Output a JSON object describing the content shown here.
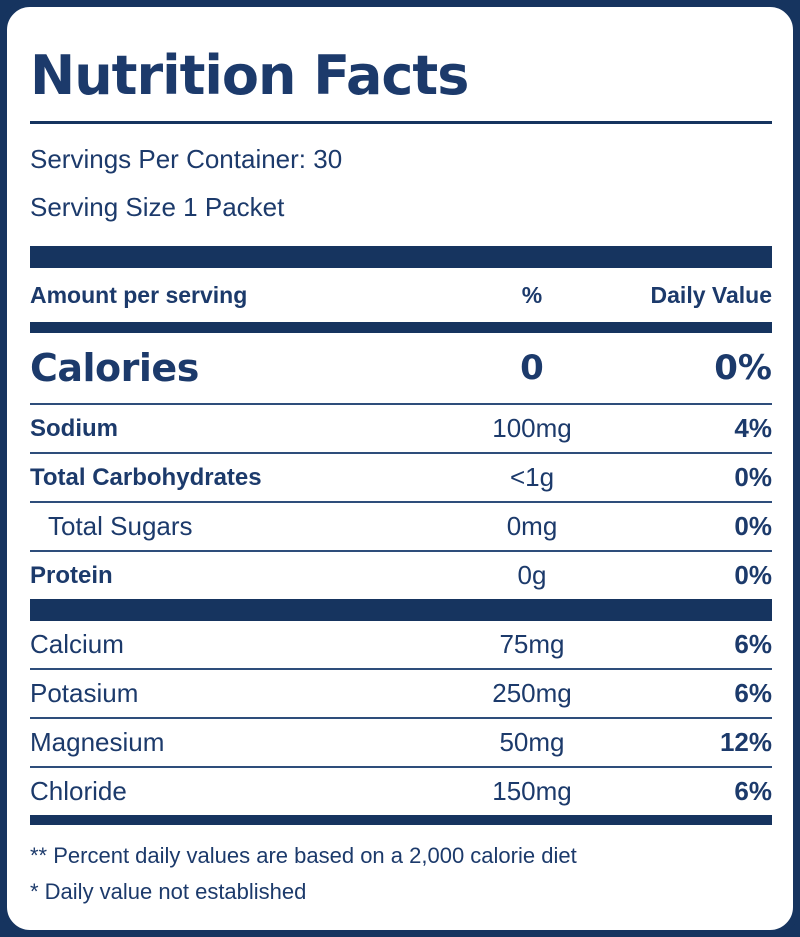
{
  "title": "Nutrition Facts",
  "servings_per_container": "Servings Per Container: 30",
  "serving_size": "Serving Size 1 Packet",
  "columns": {
    "amount_header": "Amount per serving",
    "percent_header": "%",
    "daily_value_header": "Daily Value"
  },
  "calories": {
    "name": "Calories",
    "amount": "0",
    "daily_value": "0%"
  },
  "nutrients": [
    {
      "name": "Sodium",
      "amount": "100mg",
      "daily_value": "4%"
    },
    {
      "name": "Total Carbohydrates",
      "amount": "<1g",
      "daily_value": "0%"
    },
    {
      "name": "Total Sugars",
      "amount": "0mg",
      "daily_value": "0%"
    },
    {
      "name": "Protein",
      "amount": "0g",
      "daily_value": "0%"
    }
  ],
  "minerals": [
    {
      "name": "Calcium",
      "amount": "75mg",
      "daily_value": "6%"
    },
    {
      "name": "Potasium",
      "amount": "250mg",
      "daily_value": "6%"
    },
    {
      "name": "Magnesium",
      "amount": "50mg",
      "daily_value": "12%"
    },
    {
      "name": "Chloride",
      "amount": "150mg",
      "daily_value": "6%"
    }
  ],
  "footnotes": [
    "** Percent daily values are based on a 2,000 calorie diet",
    "* Daily value not established"
  ],
  "colors": {
    "navy": "#16345F",
    "text": "#1C3A6B",
    "separator": "#2E4D7B",
    "background": "#FFFFFF"
  }
}
